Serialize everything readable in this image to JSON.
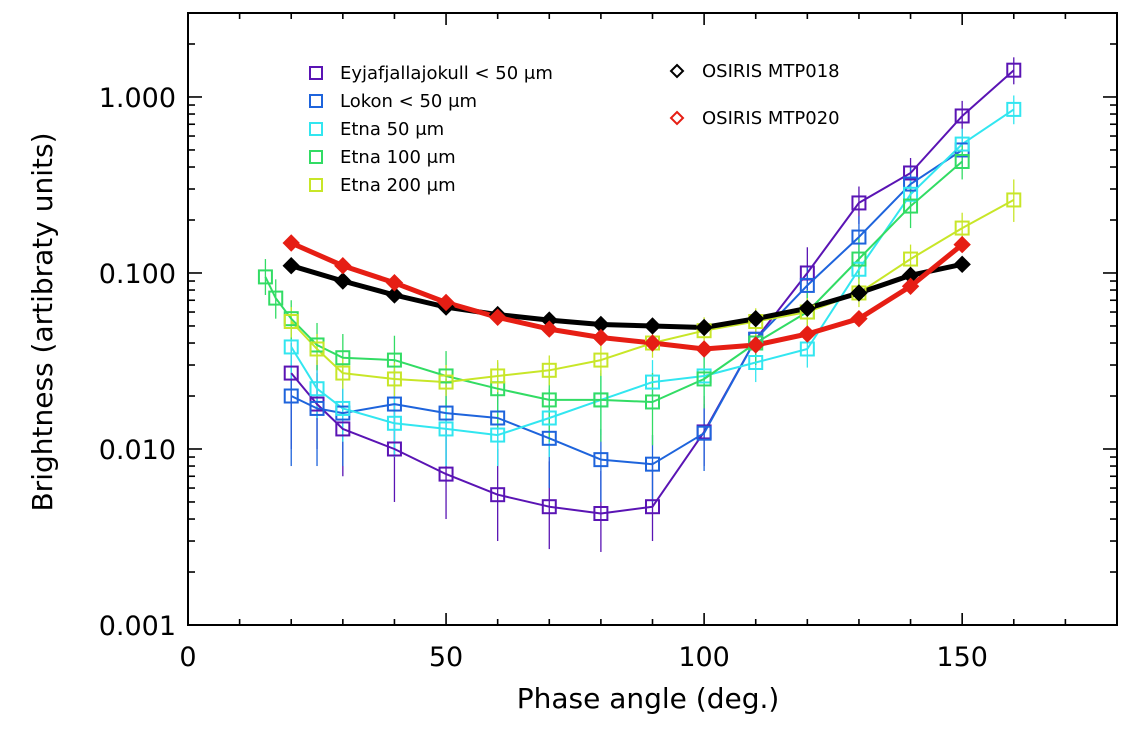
{
  "chart_data": {
    "type": "scatter",
    "title": "",
    "xlabel": "Phase angle (deg.)",
    "ylabel": "Brightness (artibraty units)",
    "xlim": [
      0,
      180
    ],
    "ylim": [
      0.001,
      3
    ],
    "yscale": "log",
    "x_ticks": [
      0,
      50,
      100,
      150
    ],
    "x_tick_labels": [
      "0",
      "50",
      "100",
      "150"
    ],
    "y_ticks": [
      0.001,
      0.01,
      0.1,
      1
    ],
    "y_tick_labels": [
      "0.001",
      "0.010",
      "0.100",
      "1.000"
    ],
    "series": [
      {
        "name": "Eyjafjallajokull < 50 μm",
        "color": "#5a14b4",
        "marker": "square",
        "x": [
          20,
          25,
          30,
          40,
          50,
          60,
          70,
          80,
          90,
          100,
          110,
          120,
          130,
          140,
          150,
          160
        ],
        "y": [
          0.027,
          0.018,
          0.013,
          0.01,
          0.0072,
          0.0055,
          0.0047,
          0.0043,
          0.0047,
          0.0125,
          0.042,
          0.1,
          0.25,
          0.37,
          0.78,
          1.42
        ],
        "err_low": [
          0.01,
          0.01,
          0.007,
          0.005,
          0.004,
          0.003,
          0.0027,
          0.0026,
          0.003,
          0.008,
          0.03,
          0.07,
          0.19,
          0.29,
          0.62,
          1.18
        ],
        "err_high": [
          0.04,
          0.032,
          0.022,
          0.018,
          0.013,
          0.01,
          0.0085,
          0.0075,
          0.0085,
          0.02,
          0.058,
          0.14,
          0.31,
          0.45,
          0.95,
          1.68
        ]
      },
      {
        "name": "Lokon < 50 μm",
        "color": "#1e64dc",
        "marker": "square",
        "x": [
          20,
          25,
          30,
          40,
          50,
          60,
          70,
          80,
          90,
          100,
          110,
          120,
          130,
          140,
          150
        ],
        "y": [
          0.02,
          0.017,
          0.016,
          0.018,
          0.016,
          0.015,
          0.0115,
          0.0087,
          0.0082,
          0.0123,
          0.042,
          0.085,
          0.16,
          0.32,
          0.5
        ],
        "err_low": [
          0.008,
          0.008,
          0.008,
          0.009,
          0.008,
          0.008,
          0.006,
          0.005,
          0.005,
          0.0075,
          0.03,
          0.06,
          0.12,
          0.25,
          0.4
        ],
        "err_high": [
          0.032,
          0.027,
          0.025,
          0.028,
          0.025,
          0.024,
          0.018,
          0.013,
          0.012,
          0.018,
          0.055,
          0.11,
          0.21,
          0.4,
          0.62
        ]
      },
      {
        "name": "Etna 50 μm",
        "color": "#32e6f0",
        "marker": "square",
        "x": [
          20,
          25,
          30,
          40,
          50,
          60,
          70,
          80,
          90,
          100,
          110,
          120,
          130,
          140,
          150,
          160
        ],
        "y": [
          0.038,
          0.022,
          0.017,
          0.014,
          0.013,
          0.012,
          0.015,
          0.019,
          0.024,
          0.026,
          0.031,
          0.037,
          0.105,
          0.28,
          0.54,
          0.85
        ],
        "err_low": [
          0.025,
          0.015,
          0.011,
          0.009,
          0.008,
          0.008,
          0.009,
          0.012,
          0.017,
          0.019,
          0.024,
          0.029,
          0.08,
          0.22,
          0.44,
          0.7
        ],
        "err_high": [
          0.05,
          0.03,
          0.024,
          0.02,
          0.019,
          0.018,
          0.022,
          0.027,
          0.032,
          0.034,
          0.039,
          0.046,
          0.13,
          0.35,
          0.66,
          1.02
        ]
      },
      {
        "name": "Etna 100 μm",
        "color": "#32dc64",
        "marker": "square",
        "x": [
          15,
          17,
          20,
          25,
          30,
          40,
          50,
          60,
          70,
          80,
          90,
          100,
          110,
          120,
          130,
          140,
          150
        ],
        "y": [
          0.095,
          0.072,
          0.055,
          0.039,
          0.033,
          0.032,
          0.026,
          0.022,
          0.019,
          0.019,
          0.0185,
          0.025,
          0.04,
          0.06,
          0.12,
          0.24,
          0.43
        ],
        "err_low": [
          0.075,
          0.055,
          0.042,
          0.028,
          0.023,
          0.022,
          0.017,
          0.013,
          0.011,
          0.011,
          0.0105,
          0.017,
          0.03,
          0.045,
          0.085,
          0.18,
          0.34
        ],
        "err_high": [
          0.12,
          0.092,
          0.07,
          0.052,
          0.045,
          0.044,
          0.036,
          0.031,
          0.028,
          0.028,
          0.027,
          0.034,
          0.052,
          0.08,
          0.16,
          0.31,
          0.54
        ]
      },
      {
        "name": "Etna 200 μm",
        "color": "#c8e628",
        "marker": "square",
        "x": [
          20,
          25,
          30,
          40,
          50,
          60,
          70,
          80,
          90,
          100,
          110,
          120,
          130,
          140,
          150,
          160
        ],
        "y": [
          0.053,
          0.037,
          0.027,
          0.025,
          0.024,
          0.026,
          0.028,
          0.032,
          0.04,
          0.047,
          0.053,
          0.06,
          0.077,
          0.12,
          0.18,
          0.26
        ],
        "err_low": [
          0.043,
          0.03,
          0.022,
          0.02,
          0.02,
          0.021,
          0.023,
          0.026,
          0.033,
          0.039,
          0.044,
          0.05,
          0.064,
          0.1,
          0.15,
          0.195
        ],
        "err_high": [
          0.064,
          0.045,
          0.033,
          0.031,
          0.03,
          0.032,
          0.034,
          0.039,
          0.048,
          0.056,
          0.063,
          0.072,
          0.093,
          0.145,
          0.22,
          0.34
        ]
      },
      {
        "name": "OSIRIS MTP018",
        "color": "#000000",
        "marker": "diamond",
        "x": [
          20,
          30,
          40,
          50,
          60,
          70,
          80,
          90,
          100,
          110,
          120,
          130,
          140,
          150
        ],
        "y": [
          0.11,
          0.09,
          0.075,
          0.064,
          0.058,
          0.054,
          0.051,
          0.05,
          0.049,
          0.055,
          0.063,
          0.077,
          0.097,
          0.112
        ]
      },
      {
        "name": "OSIRIS MTP020",
        "color": "#e61e14",
        "marker": "diamond",
        "x": [
          20,
          30,
          40,
          50,
          60,
          70,
          80,
          90,
          100,
          110,
          120,
          130,
          140,
          150
        ],
        "y": [
          0.148,
          0.11,
          0.088,
          0.068,
          0.056,
          0.048,
          0.043,
          0.04,
          0.037,
          0.039,
          0.045,
          0.055,
          0.084,
          0.145
        ]
      }
    ],
    "legend": {
      "placement": "top",
      "left_column": [
        "Eyjafjallajokull < 50 μm",
        "Lokon < 50 μm",
        "Etna 50 μm",
        "Etna 100 μm",
        "Etna 200 μm"
      ],
      "right_column": [
        "OSIRIS MTP018",
        "OSIRIS MTP020"
      ]
    }
  }
}
